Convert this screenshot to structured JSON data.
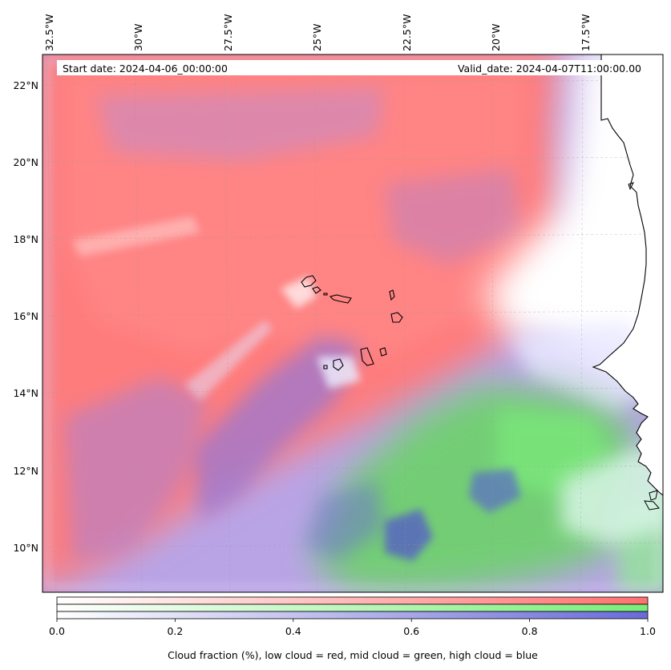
{
  "header": {
    "start_date": "Start date: 2024-04-06_00:00:00",
    "valid_date": "Valid_date: 2024-04-07T11:00:00.00"
  },
  "map": {
    "lon_labels": [
      "32.5°W",
      "30°W",
      "27.5°W",
      "25°W",
      "22.5°W",
      "20°W",
      "17.5°W"
    ],
    "lat_labels": [
      "22°N",
      "20°N",
      "18°N",
      "16°N",
      "14°N",
      "12°N",
      "10°N"
    ]
  },
  "colorbar": {
    "ticks": [
      "0.0",
      "0.2",
      "0.4",
      "0.6",
      "0.8",
      "1.0"
    ],
    "label": "Cloud fraction (%), low cloud = red, mid cloud = green, high cloud = blue",
    "colors": {
      "low": "#ff7070",
      "mid": "#77ee77",
      "high": "#7777dd"
    }
  }
}
